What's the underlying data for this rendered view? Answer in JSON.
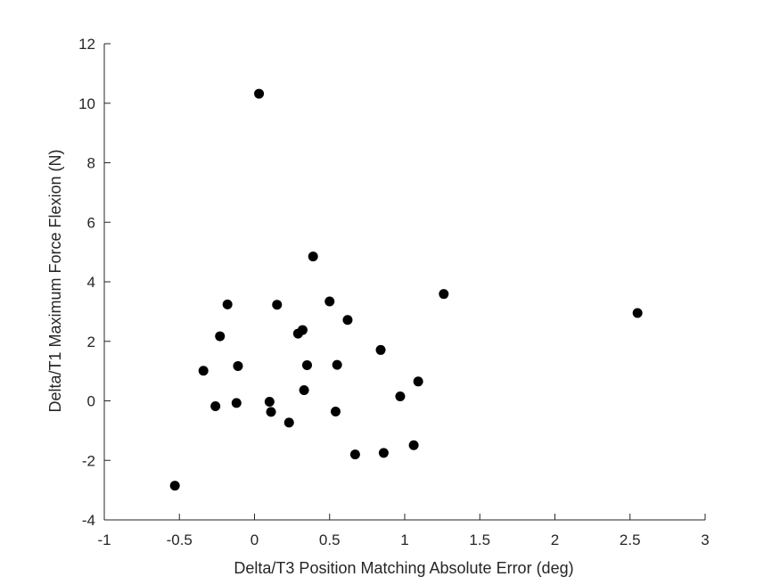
{
  "chart_data": {
    "type": "scatter",
    "xlabel": "Delta/T3 Position Matching Absolute Error (deg)",
    "ylabel": "Delta/T1 Maximum Force Flexion (N)",
    "xlim": [
      -1,
      3
    ],
    "ylim": [
      -4,
      12
    ],
    "xticks": [
      -1,
      -0.5,
      0,
      0.5,
      1,
      1.5,
      2,
      2.5,
      3
    ],
    "xtick_labels": [
      "-1",
      "-0.5",
      "0",
      "0.5",
      "1",
      "1.5",
      "2",
      "2.5",
      "3"
    ],
    "yticks": [
      -4,
      -2,
      0,
      2,
      4,
      6,
      8,
      10,
      12
    ],
    "ytick_labels": [
      "-4",
      "-2",
      "0",
      "2",
      "4",
      "6",
      "8",
      "10",
      "12"
    ],
    "grid": false,
    "marker_color": "#000000",
    "axis_color": "#262626",
    "points": [
      {
        "x": -0.53,
        "y": -2.85
      },
      {
        "x": -0.34,
        "y": 1.01
      },
      {
        "x": -0.26,
        "y": -0.18
      },
      {
        "x": -0.23,
        "y": 2.17
      },
      {
        "x": -0.18,
        "y": 3.24
      },
      {
        "x": -0.12,
        "y": -0.07
      },
      {
        "x": -0.11,
        "y": 1.17
      },
      {
        "x": 0.03,
        "y": 10.32
      },
      {
        "x": 0.1,
        "y": -0.03
      },
      {
        "x": 0.11,
        "y": -0.37
      },
      {
        "x": 0.15,
        "y": 3.23
      },
      {
        "x": 0.23,
        "y": -0.73
      },
      {
        "x": 0.29,
        "y": 2.26
      },
      {
        "x": 0.32,
        "y": 2.38
      },
      {
        "x": 0.33,
        "y": 0.36
      },
      {
        "x": 0.35,
        "y": 1.2
      },
      {
        "x": 0.39,
        "y": 4.85
      },
      {
        "x": 0.5,
        "y": 3.34
      },
      {
        "x": 0.54,
        "y": -0.36
      },
      {
        "x": 0.55,
        "y": 1.21
      },
      {
        "x": 0.62,
        "y": 2.72
      },
      {
        "x": 0.67,
        "y": -1.8
      },
      {
        "x": 0.84,
        "y": 1.71
      },
      {
        "x": 0.86,
        "y": -1.75
      },
      {
        "x": 0.97,
        "y": 0.15
      },
      {
        "x": 1.06,
        "y": -1.49
      },
      {
        "x": 1.09,
        "y": 0.65
      },
      {
        "x": 1.26,
        "y": 3.59
      },
      {
        "x": 2.55,
        "y": 2.95
      }
    ]
  }
}
